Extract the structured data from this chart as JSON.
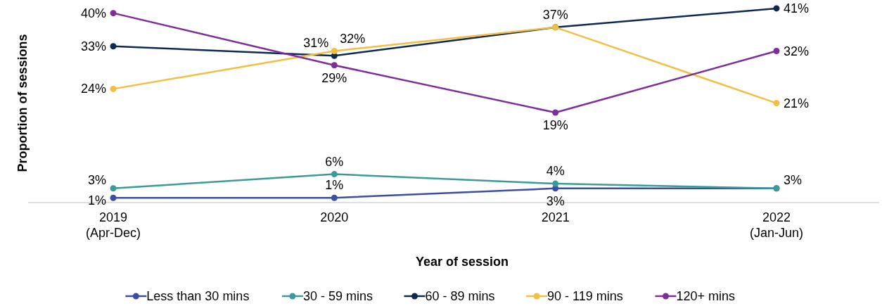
{
  "chart_data": {
    "type": "line",
    "xlabel": "Year of session",
    "ylabel": "Proportion of sessions",
    "categories": [
      "2019 (Apr-Dec)",
      "2020",
      "2021",
      "2022 (Jan-Jun)"
    ],
    "series": [
      {
        "name": "Less than 30 mins",
        "color": "#3c4ea1",
        "values": [
          1,
          1,
          3,
          3
        ],
        "value_labels": [
          "1%",
          "1%",
          "3%",
          null
        ]
      },
      {
        "name": "30 - 59 mins",
        "color": "#3c9b98",
        "values": [
          3,
          6,
          4,
          3
        ],
        "value_labels": [
          "3%",
          "6%",
          "4%",
          "3%"
        ]
      },
      {
        "name": "60 - 89 mins",
        "color": "#0e2a50",
        "values": [
          33,
          31,
          37,
          41
        ],
        "value_labels": [
          "33%",
          "31%",
          null,
          "41%"
        ]
      },
      {
        "name": "90 - 119 mins",
        "color": "#f2be44",
        "values": [
          24,
          32,
          37,
          21
        ],
        "value_labels": [
          "24%",
          "32%",
          "37%",
          "21%"
        ]
      },
      {
        "name": "120+ mins",
        "color": "#7d2e9b",
        "values": [
          40,
          29,
          19,
          32
        ],
        "value_labels": [
          "40%",
          "29%",
          "19%",
          "32%"
        ]
      }
    ],
    "tick_labels": "x",
    "legend": "bottom",
    "marker": "circle",
    "line_style": "solid"
  }
}
